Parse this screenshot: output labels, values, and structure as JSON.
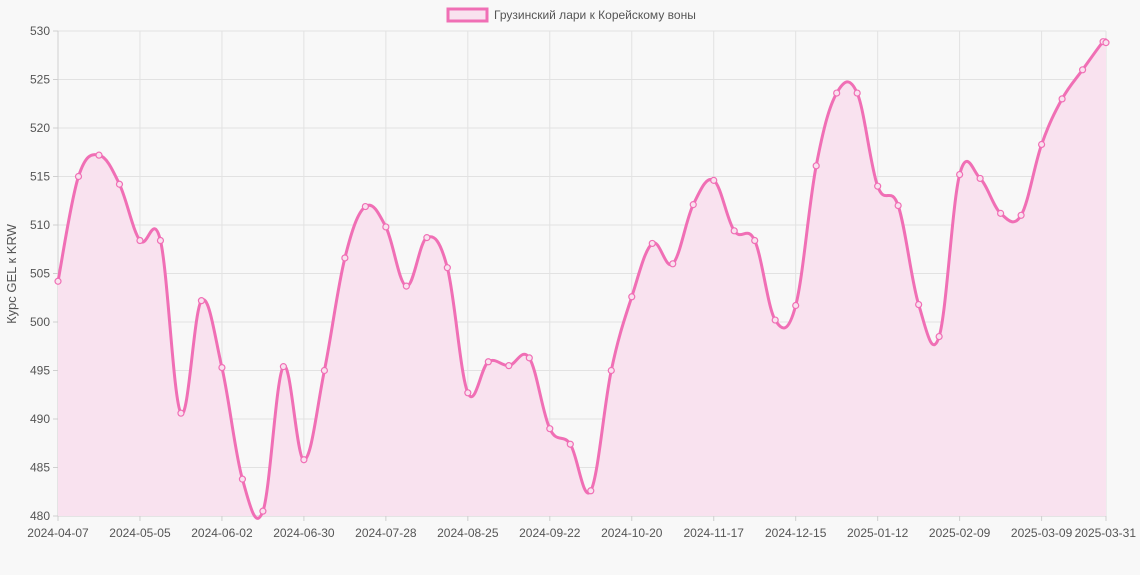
{
  "colors": {
    "line": "#f06fb5",
    "fill": "#f9e2ef",
    "grid": "#e2e2e2",
    "axis": "#cfcfcf",
    "text": "#555555",
    "background": "#f8f8f8"
  },
  "chart_data": {
    "type": "line",
    "ylabel": "Курс GEL к KRW",
    "ylim": [
      480,
      530
    ],
    "yticks": [
      480,
      485,
      490,
      495,
      500,
      505,
      510,
      515,
      520,
      525,
      530
    ],
    "xtick_labels": [
      "2024-04-07",
      "2024-05-05",
      "2024-06-02",
      "2024-06-30",
      "2024-07-28",
      "2024-08-25",
      "2024-09-22",
      "2024-10-20",
      "2024-11-17",
      "2024-12-15",
      "2025-01-12",
      "2025-02-09",
      "2025-03-09",
      "2025-03-31"
    ],
    "grid": true,
    "legend": "top-center",
    "series": [
      {
        "name": "Грузинский лари к Корейскому воны",
        "x": [
          "2024-04-07",
          "2024-04-14",
          "2024-04-21",
          "2024-04-28",
          "2024-05-05",
          "2024-05-12",
          "2024-05-19",
          "2024-05-26",
          "2024-06-02",
          "2024-06-09",
          "2024-06-16",
          "2024-06-23",
          "2024-06-30",
          "2024-07-07",
          "2024-07-14",
          "2024-07-21",
          "2024-07-28",
          "2024-08-04",
          "2024-08-11",
          "2024-08-18",
          "2024-08-25",
          "2024-09-01",
          "2024-09-08",
          "2024-09-15",
          "2024-09-22",
          "2024-09-29",
          "2024-10-06",
          "2024-10-13",
          "2024-10-20",
          "2024-10-27",
          "2024-11-03",
          "2024-11-10",
          "2024-11-17",
          "2024-11-24",
          "2024-12-01",
          "2024-12-08",
          "2024-12-15",
          "2024-12-22",
          "2024-12-29",
          "2025-01-05",
          "2025-01-12",
          "2025-01-19",
          "2025-01-26",
          "2025-02-02",
          "2025-02-09",
          "2025-02-16",
          "2025-02-23",
          "2025-03-02",
          "2025-03-09",
          "2025-03-16",
          "2025-03-23",
          "2025-03-30",
          "2025-03-31"
        ],
        "values": [
          504.2,
          515.0,
          517.2,
          514.2,
          508.4,
          508.4,
          490.6,
          502.2,
          495.3,
          483.8,
          480.5,
          495.4,
          485.8,
          495.0,
          506.6,
          511.9,
          509.8,
          503.7,
          508.7,
          505.6,
          492.7,
          495.9,
          495.5,
          496.3,
          489.0,
          487.4,
          482.6,
          495.0,
          502.6,
          508.1,
          506.0,
          512.1,
          514.6,
          509.4,
          508.4,
          500.2,
          501.7,
          516.1,
          523.6,
          523.6,
          514.0,
          512.0,
          501.8,
          498.5,
          515.2,
          514.8,
          511.2,
          511.0,
          518.3,
          523.0,
          526.0,
          528.9,
          528.8
        ]
      }
    ]
  }
}
